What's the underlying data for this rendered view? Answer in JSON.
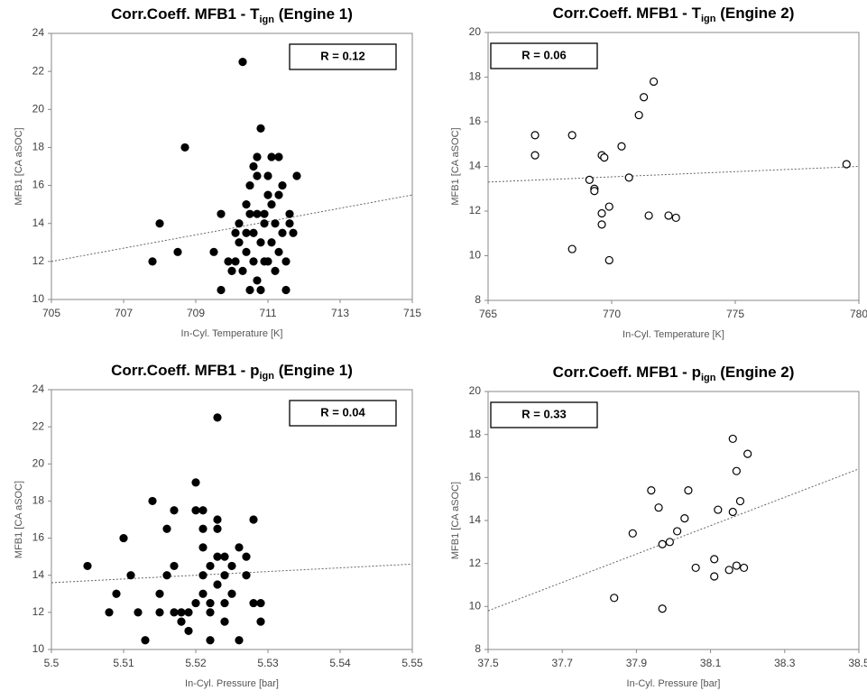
{
  "chart_data": [
    {
      "type": "scatter",
      "title": "Corr.Coeff. MFB1 - T",
      "title_sub": "ign",
      "title_suffix": " (Engine 1)",
      "x_label": "In-Cyl. Temperature [K]",
      "y_label": "MFB1 [CA aSOC]",
      "annotation": "R = 0.12",
      "annotation_corner": "upper right",
      "marker_fill": "#000000",
      "color": "#000000",
      "x": [
        707.8,
        708.0,
        708.5,
        708.7,
        709.5,
        709.7,
        709.7,
        709.9,
        710.0,
        710.1,
        710.1,
        710.2,
        710.2,
        710.3,
        710.3,
        710.4,
        710.4,
        710.4,
        710.5,
        710.5,
        710.5,
        710.6,
        710.6,
        710.6,
        710.7,
        710.7,
        710.7,
        710.7,
        710.8,
        710.8,
        710.8,
        710.9,
        710.9,
        711.0,
        711.0,
        711.0,
        711.1,
        711.1,
        711.2,
        711.2,
        711.3,
        711.3,
        711.3,
        711.4,
        711.4,
        711.5,
        711.5,
        711.6,
        711.6,
        711.8,
        711.7,
        710.9,
        711.1
      ],
      "values": [
        12,
        14,
        12.5,
        18,
        12.5,
        14.5,
        10.5,
        12,
        11.5,
        13.5,
        12,
        13,
        14,
        11.5,
        22.5,
        12.5,
        15,
        13.5,
        10.5,
        14.5,
        16,
        17,
        13.5,
        12,
        17.5,
        16.5,
        14.5,
        11,
        10.5,
        13,
        19,
        14.5,
        12,
        15.5,
        16.5,
        12,
        17.5,
        13,
        14,
        11.5,
        17.5,
        15.5,
        12.5,
        16,
        13.5,
        12,
        10.5,
        14.5,
        14,
        16.5,
        13.5,
        14,
        15
      ],
      "trendline": {
        "x": [
          705,
          715
        ],
        "y": [
          12,
          15.5
        ]
      },
      "xlim": [
        705,
        715
      ],
      "xticks": [
        705,
        707,
        709,
        711,
        713,
        715
      ],
      "ylim": [
        10,
        24
      ],
      "yticks": [
        10,
        12,
        14,
        16,
        18,
        20,
        22,
        24
      ]
    },
    {
      "type": "scatter",
      "title": "Corr.Coeff. MFB1 - T",
      "title_sub": "ign",
      "title_suffix": " (Engine 2)",
      "x_label": "In-Cyl. Temperature [K]",
      "y_label": "MFB1 [CA aSOC]",
      "annotation": "R = 0.06",
      "annotation_corner": "upper left",
      "marker_fill": "#ffffff",
      "color": "#000000",
      "x": [
        766.9,
        766.9,
        768.4,
        768.4,
        769.1,
        769.3,
        769.3,
        769.6,
        769.6,
        769.6,
        769.7,
        769.9,
        769.9,
        770.4,
        770.7,
        771.1,
        771.3,
        771.5,
        771.7,
        772.3,
        772.6,
        779.5
      ],
      "values": [
        15.4,
        14.5,
        15.4,
        10.3,
        13.4,
        13,
        12.9,
        11.9,
        11.4,
        14.5,
        14.4,
        12.2,
        9.8,
        14.9,
        13.5,
        16.3,
        17.1,
        11.8,
        17.8,
        11.8,
        11.7,
        14.1
      ],
      "trendline": {
        "x": [
          765,
          780
        ],
        "y": [
          13.3,
          14
        ]
      },
      "xlim": [
        765,
        780
      ],
      "xticks": [
        765,
        770,
        775,
        780
      ],
      "ylim": [
        8,
        20
      ],
      "yticks": [
        8,
        10,
        12,
        14,
        16,
        18,
        20
      ]
    },
    {
      "type": "scatter",
      "title": "Corr.Coeff. MFB1 - p",
      "title_sub": "ign",
      "title_suffix": " (Engine 1)",
      "x_label": "In-Cyl. Pressure [bar]",
      "y_label": "MFB1 [CA aSOC]",
      "annotation": "R = 0.04",
      "annotation_corner": "upper right",
      "marker_fill": "#000000",
      "color": "#000000",
      "x": [
        5.505,
        5.508,
        5.509,
        5.51,
        5.511,
        5.512,
        5.513,
        5.514,
        5.515,
        5.515,
        5.516,
        5.516,
        5.517,
        5.517,
        5.517,
        5.518,
        5.518,
        5.519,
        5.519,
        5.52,
        5.52,
        5.52,
        5.521,
        5.521,
        5.521,
        5.521,
        5.521,
        5.522,
        5.522,
        5.522,
        5.522,
        5.523,
        5.523,
        5.523,
        5.523,
        5.523,
        5.524,
        5.524,
        5.524,
        5.524,
        5.525,
        5.525,
        5.526,
        5.526,
        5.527,
        5.527,
        5.528,
        5.528,
        5.529,
        5.529
      ],
      "values": [
        14.5,
        12,
        13,
        16,
        14,
        12,
        10.5,
        18,
        12,
        13,
        14,
        16.5,
        12,
        17.5,
        14.5,
        11.5,
        12,
        11,
        12,
        19,
        12.5,
        17.5,
        17.5,
        15.5,
        16.5,
        14,
        13,
        12,
        14.5,
        10.5,
        12.5,
        16.5,
        13.5,
        15,
        22.5,
        17,
        14,
        15,
        12.5,
        11.5,
        13,
        14.5,
        15.5,
        10.5,
        15,
        14,
        17,
        12.5,
        12.5,
        11.5
      ],
      "trendline": {
        "x": [
          5.5,
          5.55
        ],
        "y": [
          13.6,
          14.6
        ]
      },
      "xlim": [
        5.5,
        5.55
      ],
      "xticks": [
        5.5,
        5.51,
        5.52,
        5.53,
        5.54,
        5.55
      ],
      "ylim": [
        10,
        24
      ],
      "yticks": [
        10,
        12,
        14,
        16,
        18,
        20,
        22,
        24
      ]
    },
    {
      "type": "scatter",
      "title": "Corr.Coeff. MFB1 - p",
      "title_sub": "ign",
      "title_suffix": " (Engine 2)",
      "x_label": "In-Cyl. Pressure [bar]",
      "y_label": "MFB1 [CA aSOC]",
      "annotation": "R = 0.33",
      "annotation_corner": "upper left",
      "marker_fill": "#ffffff",
      "color": "#000000",
      "x": [
        37.84,
        37.89,
        37.94,
        37.96,
        37.97,
        37.97,
        37.99,
        38.01,
        38.03,
        38.04,
        38.06,
        38.11,
        38.11,
        38.12,
        38.15,
        38.16,
        38.16,
        38.17,
        38.17,
        38.18,
        38.19,
        38.2
      ],
      "values": [
        10.4,
        13.4,
        15.4,
        14.6,
        9.9,
        12.9,
        13,
        13.5,
        14.1,
        15.4,
        11.8,
        12.2,
        11.4,
        14.5,
        11.7,
        17.8,
        14.4,
        16.3,
        11.9,
        14.9,
        11.8,
        17.1
      ],
      "trendline": {
        "x": [
          37.5,
          38.5
        ],
        "y": [
          9.8,
          16.4
        ]
      },
      "xlim": [
        37.5,
        38.5
      ],
      "xticks": [
        37.5,
        37.7,
        37.9,
        38.1,
        38.3,
        38.5
      ],
      "ylim": [
        8,
        20
      ],
      "yticks": [
        8,
        10,
        12,
        14,
        16,
        18,
        20
      ]
    }
  ]
}
